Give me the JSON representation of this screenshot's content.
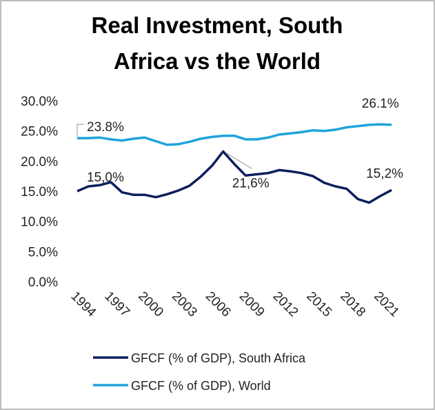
{
  "chart_data": {
    "type": "line",
    "title": [
      "Real Investment, South",
      "Africa vs the World"
    ],
    "x": [
      1994,
      1995,
      1996,
      1997,
      1998,
      1999,
      2000,
      2001,
      2002,
      2003,
      2004,
      2005,
      2006,
      2007,
      2008,
      2009,
      2010,
      2011,
      2012,
      2013,
      2014,
      2015,
      2016,
      2017,
      2018,
      2019,
      2020,
      2021,
      2022
    ],
    "xlim": [
      1994,
      2022
    ],
    "xticks": [
      1994,
      1997,
      2000,
      2003,
      2006,
      2009,
      2012,
      2015,
      2018,
      2021
    ],
    "ylim": [
      0,
      30
    ],
    "yticks": [
      {
        "value": 0,
        "label": "0.0%"
      },
      {
        "value": 5,
        "label": "5.0%"
      },
      {
        "value": 10,
        "label": "10.0%"
      },
      {
        "value": 15,
        "label": "15.0%"
      },
      {
        "value": 20,
        "label": "20.0%"
      },
      {
        "value": 25,
        "label": "25.0%"
      },
      {
        "value": 30,
        "label": "30.0%"
      }
    ],
    "grid": false,
    "legend": "bottom",
    "series": [
      {
        "name": "GFCF (% of GDP), South Africa",
        "color": "#0c1e5b",
        "values": [
          15.0,
          15.8,
          16.0,
          16.5,
          14.8,
          14.4,
          14.4,
          14.0,
          14.5,
          15.1,
          15.9,
          17.4,
          19.2,
          21.6,
          19.5,
          17.6,
          17.8,
          18.0,
          18.5,
          18.3,
          18.0,
          17.5,
          16.4,
          15.8,
          15.4,
          13.7,
          13.1,
          14.2,
          15.2
        ],
        "value_labels": [
          "15,0%",
          null,
          null,
          null,
          null,
          null,
          null,
          null,
          null,
          null,
          null,
          null,
          null,
          "21,6%",
          null,
          null,
          null,
          null,
          null,
          null,
          null,
          null,
          null,
          null,
          null,
          null,
          null,
          null,
          "15,2%"
        ]
      },
      {
        "name": "GFCF (% of GDP), World",
        "color": "#1fa3dc",
        "values": [
          23.8,
          23.8,
          23.9,
          23.6,
          23.4,
          23.7,
          23.9,
          23.3,
          22.7,
          22.8,
          23.2,
          23.7,
          24.0,
          24.2,
          24.2,
          23.6,
          23.6,
          23.9,
          24.4,
          24.6,
          24.8,
          25.1,
          25.0,
          25.2,
          25.6,
          25.8,
          26.0,
          26.1,
          26.0
        ],
        "value_labels": [
          "23.8%",
          null,
          null,
          null,
          null,
          null,
          null,
          null,
          null,
          null,
          null,
          null,
          null,
          null,
          null,
          null,
          null,
          null,
          null,
          null,
          null,
          null,
          null,
          null,
          null,
          null,
          null,
          "26.1%",
          null
        ]
      }
    ]
  }
}
